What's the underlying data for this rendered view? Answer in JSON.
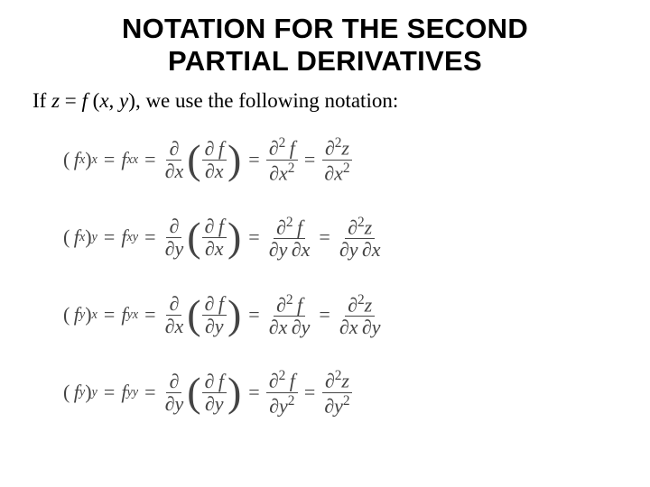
{
  "title_line1": "NOTATION FOR THE SECOND",
  "title_line2": "PARTIAL DERIVATIVES",
  "intro_prefix": "If  ",
  "intro_z": "z",
  "intro_eq": " = ",
  "intro_f": "f ",
  "intro_paren_open": "(",
  "intro_x": "x",
  "intro_comma": ", ",
  "intro_y": "y",
  "intro_paren_close": ")",
  "intro_suffix": ", we use the following notation:",
  "rows": [
    {
      "outer": "x",
      "inner": "x",
      "mixed": "xx",
      "d2_bot": "x",
      "sq_bot": true
    },
    {
      "outer": "x",
      "inner": "y",
      "mixed": "xy",
      "d2_bot": "y x",
      "sq_bot": false
    },
    {
      "outer": "y",
      "inner": "x",
      "mixed": "yx",
      "d2_bot": "x y",
      "sq_bot": false
    },
    {
      "outer": "y",
      "inner": "y",
      "mixed": "yy",
      "d2_bot": "y",
      "sq_bot": true
    }
  ],
  "colors": {
    "text": "#000000",
    "math": "#444444",
    "bg": "#ffffff"
  },
  "fontsizes": {
    "title": 31,
    "intro": 23,
    "math": 22
  }
}
